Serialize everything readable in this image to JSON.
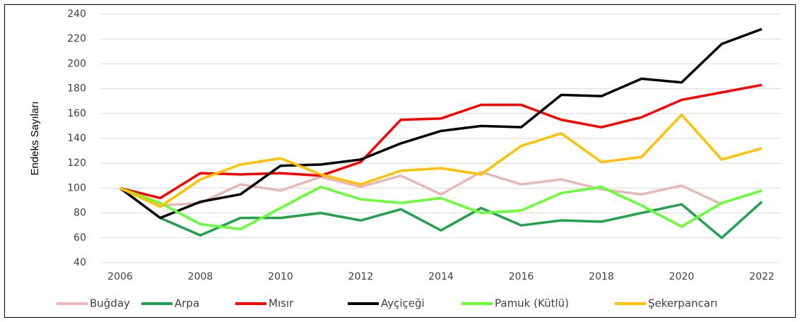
{
  "chart_data": {
    "type": "line",
    "y_label": "Endeks Sayıları",
    "x": [
      2006,
      2007,
      2008,
      2009,
      2010,
      2011,
      2012,
      2013,
      2014,
      2015,
      2016,
      2017,
      2018,
      2019,
      2020,
      2021,
      2022
    ],
    "xlim": [
      2006,
      2022
    ],
    "xticks": [
      2006,
      2008,
      2010,
      2012,
      2014,
      2016,
      2018,
      2020,
      2022
    ],
    "ylim": [
      40,
      240
    ],
    "yticks": [
      40,
      60,
      80,
      100,
      120,
      140,
      160,
      180,
      200,
      220,
      240
    ],
    "grid": true,
    "legend": "bottom",
    "series": [
      {
        "name": "Buğday",
        "color": "#e6b9b8",
        "values": [
          100,
          86,
          88,
          103,
          98,
          109,
          101,
          110,
          95,
          113,
          103,
          107,
          99,
          95,
          102,
          87,
          null
        ]
      },
      {
        "name": "Arpa",
        "color": "#1fa24a",
        "values": [
          100,
          76,
          62,
          76,
          76,
          80,
          74,
          83,
          66,
          84,
          70,
          74,
          73,
          80,
          87,
          60,
          89
        ]
      },
      {
        "name": "Mısır",
        "color": "#ff0000",
        "values": [
          100,
          92,
          112,
          111,
          112,
          110,
          121,
          155,
          156,
          167,
          167,
          155,
          149,
          157,
          171,
          177,
          183
        ]
      },
      {
        "name": "Ayçiçeği",
        "color": "#000000",
        "values": [
          100,
          76,
          89,
          95,
          118,
          119,
          123,
          136,
          146,
          150,
          149,
          175,
          174,
          188,
          185,
          216,
          228
        ]
      },
      {
        "name": "Pamuk (Kütlü)",
        "color": "#66ff33",
        "values": [
          100,
          88,
          71,
          67,
          84,
          101,
          91,
          88,
          92,
          80,
          82,
          96,
          101,
          86,
          69,
          88,
          98
        ]
      },
      {
        "name": "Şekerpancarı",
        "color": "#ffc000",
        "values": [
          100,
          85,
          107,
          119,
          124,
          111,
          103,
          114,
          116,
          111,
          134,
          144,
          121,
          125,
          159,
          123,
          132
        ]
      }
    ]
  }
}
